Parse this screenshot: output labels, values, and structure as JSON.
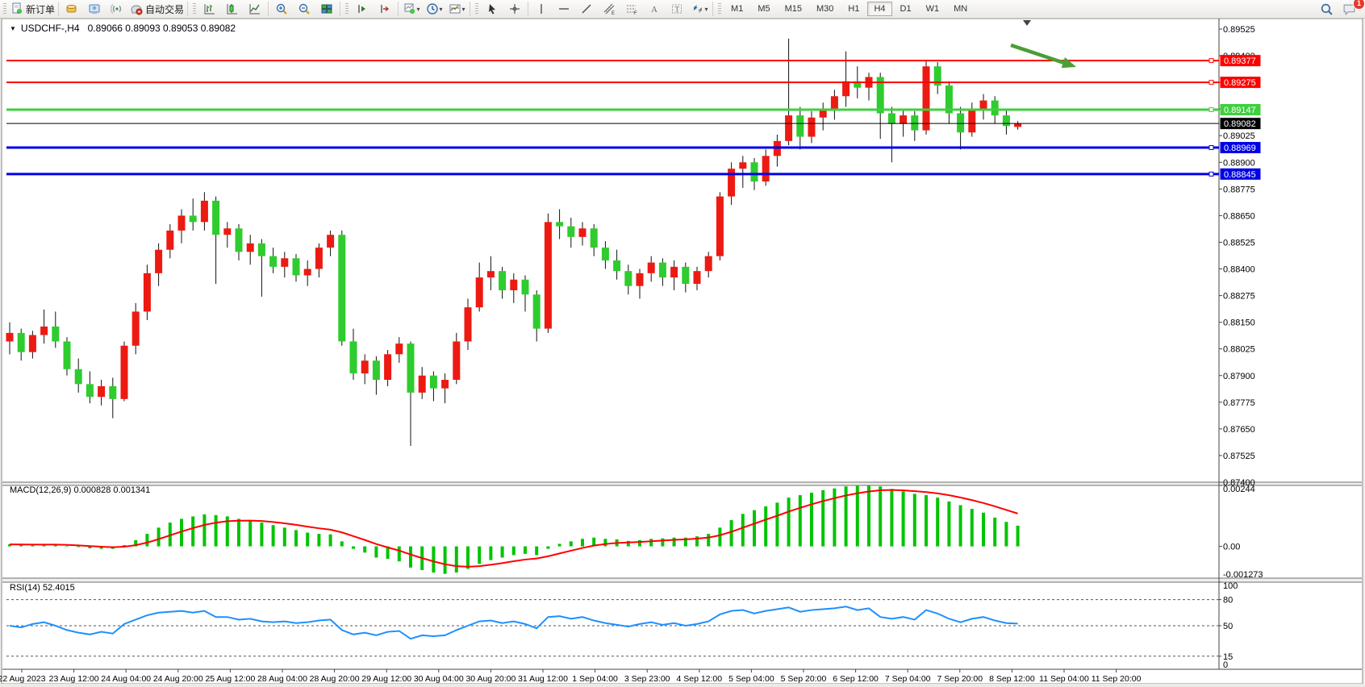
{
  "toolbar": {
    "new_order_label": "新订单",
    "auto_trading_label": "自动交易",
    "timeframes": [
      "M1",
      "M5",
      "M15",
      "M30",
      "H1",
      "H4",
      "D1",
      "W1",
      "MN"
    ],
    "active_timeframe": "H4",
    "notification_badge": "1"
  },
  "chart": {
    "title": "USDCHF-,H4",
    "quote": "0.89066 0.89093 0.89053 0.89082",
    "macd_label": "MACD(12,26,9) 0.000828 0.001341",
    "rsi_label": "RSI(14) 52.4015"
  },
  "chart_data": [
    {
      "type": "candlestick",
      "symbol": "USDCHF",
      "timeframe": "H4",
      "bull_color": "#ed1a12",
      "bear_color": "#2ecc2e",
      "wick_color": "#111111",
      "ylim": [
        0.874,
        0.89525
      ],
      "y_tick_start": 0.874,
      "y_tick_step": 0.00125,
      "y_tick_count": 18,
      "current_price": 0.89082,
      "current_price_color": "#000000",
      "hlines": [
        {
          "value": 0.89377,
          "color": "#ff0000",
          "width": 2
        },
        {
          "value": 0.89275,
          "color": "#ff0000",
          "width": 2
        },
        {
          "value": 0.89147,
          "color": "#3fcf3f",
          "width": 3
        },
        {
          "value": 0.88969,
          "color": "#0000e6",
          "width": 3
        },
        {
          "value": 0.88845,
          "color": "#0000e6",
          "width": 3
        }
      ],
      "annotation_arrow": {
        "color": "#4a9e35",
        "from": [
          1253,
          56
        ],
        "to": [
          1334,
          83
        ]
      },
      "time_labels": [
        "22 Aug 2023",
        "23 Aug 12:00",
        "24 Aug 04:00",
        "24 Aug 20:00",
        "25 Aug 12:00",
        "28 Aug 04:00",
        "28 Aug 20:00",
        "29 Aug 12:00",
        "30 Aug 04:00",
        "30 Aug 20:00",
        "31 Aug 12:00",
        "1 Sep 04:00",
        "3 Sep 23:00",
        "4 Sep 12:00",
        "5 Sep 04:00",
        "5 Sep 20:00",
        "6 Sep 12:00",
        "7 Sep 04:00",
        "7 Sep 20:00",
        "8 Sep 12:00",
        "11 Sep 04:00",
        "11 Sep 20:00"
      ],
      "candles": [
        [
          0.8806,
          0.8815,
          0.88,
          0.881
        ],
        [
          0.881,
          0.8812,
          0.8797,
          0.8801
        ],
        [
          0.8801,
          0.8811,
          0.8798,
          0.8809
        ],
        [
          0.8809,
          0.8821,
          0.8805,
          0.8813
        ],
        [
          0.8813,
          0.882,
          0.8803,
          0.8806
        ],
        [
          0.8806,
          0.8808,
          0.879,
          0.8793
        ],
        [
          0.8793,
          0.8798,
          0.8782,
          0.8786
        ],
        [
          0.8786,
          0.8792,
          0.8777,
          0.878
        ],
        [
          0.878,
          0.8788,
          0.8776,
          0.8785
        ],
        [
          0.8785,
          0.8789,
          0.877,
          0.8779
        ],
        [
          0.8779,
          0.8806,
          0.8778,
          0.8804
        ],
        [
          0.8804,
          0.8824,
          0.88,
          0.882
        ],
        [
          0.882,
          0.8842,
          0.8816,
          0.8838
        ],
        [
          0.8838,
          0.8852,
          0.8832,
          0.8849
        ],
        [
          0.8849,
          0.8861,
          0.8845,
          0.8858
        ],
        [
          0.8858,
          0.8868,
          0.8852,
          0.8865
        ],
        [
          0.8865,
          0.8873,
          0.8858,
          0.8862
        ],
        [
          0.8862,
          0.8876,
          0.8858,
          0.8872
        ],
        [
          0.8872,
          0.8874,
          0.8833,
          0.8856
        ],
        [
          0.8856,
          0.8862,
          0.885,
          0.8859
        ],
        [
          0.8859,
          0.8861,
          0.8844,
          0.8848
        ],
        [
          0.8848,
          0.8856,
          0.8842,
          0.8852
        ],
        [
          0.8852,
          0.8854,
          0.8827,
          0.8846
        ],
        [
          0.8846,
          0.885,
          0.8838,
          0.8841
        ],
        [
          0.8841,
          0.8848,
          0.8836,
          0.8845
        ],
        [
          0.8845,
          0.8847,
          0.8834,
          0.8837
        ],
        [
          0.8837,
          0.8844,
          0.8832,
          0.884
        ],
        [
          0.884,
          0.8852,
          0.8836,
          0.885
        ],
        [
          0.885,
          0.8858,
          0.8846,
          0.8856
        ],
        [
          0.8856,
          0.8858,
          0.8804,
          0.8806
        ],
        [
          0.8806,
          0.8812,
          0.8788,
          0.8791
        ],
        [
          0.8791,
          0.88,
          0.8786,
          0.8797
        ],
        [
          0.8797,
          0.8799,
          0.8781,
          0.8788
        ],
        [
          0.8788,
          0.8802,
          0.8785,
          0.88
        ],
        [
          0.88,
          0.8808,
          0.8796,
          0.8805
        ],
        [
          0.8805,
          0.8806,
          0.8757,
          0.8782
        ],
        [
          0.8782,
          0.8794,
          0.8779,
          0.879
        ],
        [
          0.879,
          0.8792,
          0.8778,
          0.8784
        ],
        [
          0.8784,
          0.8791,
          0.8777,
          0.8788
        ],
        [
          0.8788,
          0.881,
          0.8786,
          0.8806
        ],
        [
          0.8806,
          0.8826,
          0.8802,
          0.8822
        ],
        [
          0.8822,
          0.8843,
          0.882,
          0.8836
        ],
        [
          0.8836,
          0.8846,
          0.883,
          0.8839
        ],
        [
          0.8839,
          0.8841,
          0.8826,
          0.883
        ],
        [
          0.883,
          0.8838,
          0.8824,
          0.8835
        ],
        [
          0.8835,
          0.8837,
          0.882,
          0.8828
        ],
        [
          0.8828,
          0.883,
          0.8806,
          0.8812
        ],
        [
          0.8812,
          0.8866,
          0.881,
          0.8862
        ],
        [
          0.8862,
          0.8868,
          0.8854,
          0.886
        ],
        [
          0.886,
          0.8864,
          0.885,
          0.8855
        ],
        [
          0.8855,
          0.8862,
          0.8851,
          0.8859
        ],
        [
          0.8859,
          0.8861,
          0.8846,
          0.885
        ],
        [
          0.885,
          0.8853,
          0.884,
          0.8844
        ],
        [
          0.8844,
          0.8849,
          0.8835,
          0.8839
        ],
        [
          0.8839,
          0.8842,
          0.8828,
          0.8832
        ],
        [
          0.8832,
          0.884,
          0.8826,
          0.8838
        ],
        [
          0.8838,
          0.8846,
          0.8834,
          0.8843
        ],
        [
          0.8843,
          0.8845,
          0.8832,
          0.8836
        ],
        [
          0.8836,
          0.8844,
          0.883,
          0.8841
        ],
        [
          0.8841,
          0.8843,
          0.8829,
          0.8833
        ],
        [
          0.8833,
          0.8841,
          0.883,
          0.8839
        ],
        [
          0.8839,
          0.8848,
          0.8836,
          0.8846
        ],
        [
          0.8846,
          0.8876,
          0.8844,
          0.8874
        ],
        [
          0.8874,
          0.889,
          0.887,
          0.8887
        ],
        [
          0.8887,
          0.8893,
          0.8878,
          0.889
        ],
        [
          0.889,
          0.8892,
          0.8877,
          0.8881
        ],
        [
          0.8881,
          0.8896,
          0.8879,
          0.8893
        ],
        [
          0.8893,
          0.8903,
          0.8888,
          0.89
        ],
        [
          0.89,
          0.8948,
          0.8898,
          0.8912
        ],
        [
          0.8912,
          0.8916,
          0.8896,
          0.8902
        ],
        [
          0.8902,
          0.8914,
          0.8899,
          0.8911
        ],
        [
          0.8911,
          0.8918,
          0.8905,
          0.8915
        ],
        [
          0.8915,
          0.8924,
          0.891,
          0.8921
        ],
        [
          0.8921,
          0.8942,
          0.8916,
          0.8928
        ],
        [
          0.8928,
          0.8935,
          0.892,
          0.8925
        ],
        [
          0.8925,
          0.8932,
          0.8919,
          0.893
        ],
        [
          0.893,
          0.8932,
          0.8901,
          0.8913
        ],
        [
          0.8913,
          0.8916,
          0.889,
          0.8908
        ],
        [
          0.8908,
          0.8915,
          0.8902,
          0.8912
        ],
        [
          0.8912,
          0.8914,
          0.89,
          0.8905
        ],
        [
          0.8905,
          0.8938,
          0.8903,
          0.8935
        ],
        [
          0.8935,
          0.8937,
          0.8922,
          0.8926
        ],
        [
          0.8926,
          0.8928,
          0.8908,
          0.8913
        ],
        [
          0.8913,
          0.8916,
          0.8896,
          0.8904
        ],
        [
          0.8904,
          0.8918,
          0.8902,
          0.8915
        ],
        [
          0.8915,
          0.8922,
          0.891,
          0.8919
        ],
        [
          0.8919,
          0.8921,
          0.8908,
          0.8912
        ],
        [
          0.8912,
          0.8915,
          0.8903,
          0.8907
        ],
        [
          0.89066,
          0.89093,
          0.89053,
          0.89082
        ]
      ]
    },
    {
      "type": "bar",
      "name": "MACD(12,26,9)",
      "main_value": 0.000828,
      "signal_value": 0.001341,
      "hist_color": "#00c400",
      "signal_color": "#ff0000",
      "ylim": [
        -0.001273,
        0.00244
      ],
      "y_labels": [
        "0.00244",
        "0.00",
        "-0.001273"
      ],
      "values": [
        8e-05,
        6e-05,
        5e-05,
        8e-05,
        7e-05,
        2e-05,
        -3e-05,
        -8e-05,
        -0.0001,
        -0.0001,
        5e-05,
        0.00025,
        0.0005,
        0.00075,
        0.00095,
        0.0011,
        0.0012,
        0.00128,
        0.00125,
        0.0012,
        0.0011,
        0.00105,
        0.00095,
        0.00085,
        0.00075,
        0.00065,
        0.00055,
        0.0005,
        0.00048,
        0.0002,
        -0.0001,
        -0.00025,
        -0.00045,
        -0.0005,
        -0.0006,
        -0.00085,
        -0.00095,
        -0.00105,
        -0.0011,
        -0.00105,
        -0.0009,
        -0.0007,
        -0.00055,
        -0.00045,
        -0.00035,
        -0.0003,
        -0.00035,
        -0.0001,
        0.0001,
        0.0002,
        0.0003,
        0.00035,
        0.0003,
        0.00028,
        0.00022,
        0.00025,
        0.0003,
        0.00032,
        0.00035,
        0.00035,
        0.0004,
        0.0005,
        0.00075,
        0.00105,
        0.0013,
        0.00145,
        0.0016,
        0.00175,
        0.00195,
        0.00205,
        0.00215,
        0.00225,
        0.00232,
        0.0024,
        0.00242,
        0.00244,
        0.0024,
        0.0023,
        0.0022,
        0.0021,
        0.00205,
        0.00195,
        0.0018,
        0.00165,
        0.0015,
        0.00135,
        0.00115,
        0.00098,
        0.000828
      ]
    },
    {
      "type": "line",
      "name": "RSI(14)",
      "current_value": 52.4015,
      "line_color": "#1e90ff",
      "ylim": [
        0,
        100
      ],
      "y_labels": [
        100,
        80,
        50,
        15,
        0
      ],
      "levels": [
        80,
        50,
        15
      ],
      "values": [
        50,
        48,
        52,
        54,
        50,
        45,
        42,
        40,
        43,
        41,
        52,
        57,
        62,
        65,
        66,
        67,
        65,
        67,
        60,
        60,
        57,
        58,
        55,
        54,
        55,
        53,
        54,
        56,
        57,
        45,
        40,
        42,
        39,
        43,
        44,
        35,
        39,
        38,
        39,
        45,
        50,
        55,
        56,
        53,
        55,
        52,
        47,
        60,
        61,
        58,
        60,
        56,
        53,
        51,
        49,
        52,
        54,
        51,
        53,
        50,
        52,
        55,
        63,
        67,
        68,
        64,
        67,
        69,
        71,
        66,
        68,
        69,
        70,
        72,
        68,
        70,
        60,
        58,
        60,
        57,
        68,
        64,
        58,
        54,
        58,
        60,
        56,
        53,
        52.4
      ]
    }
  ]
}
